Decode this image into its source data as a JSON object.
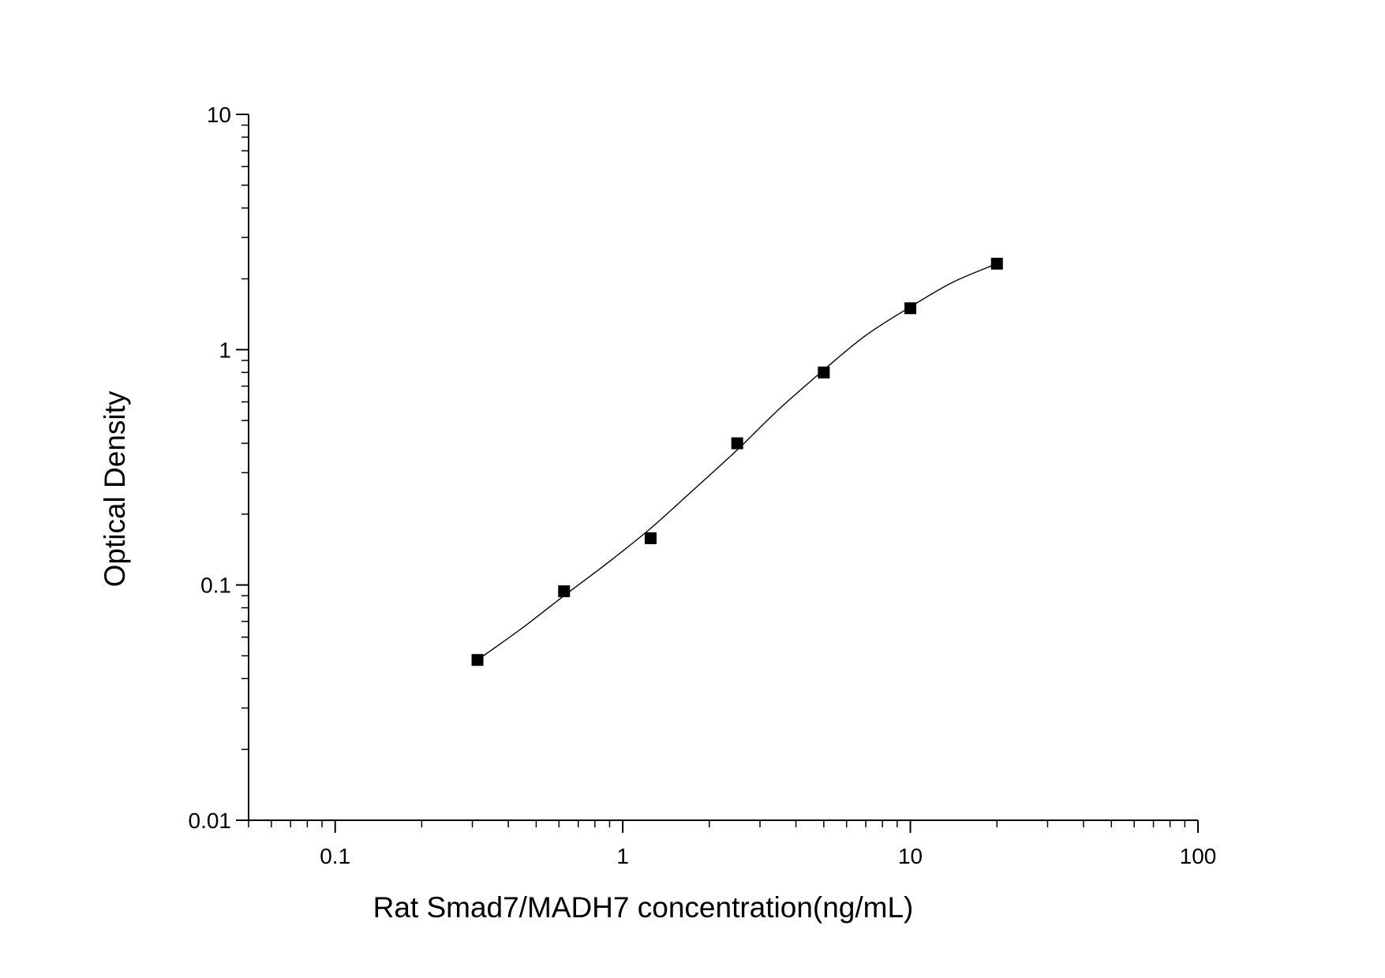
{
  "chart_data": {
    "type": "scatter",
    "xlabel": "Rat Smad7/MADH7 concentration(ng/mL)",
    "ylabel": "Optical Density",
    "x_scale": "log",
    "y_scale": "log",
    "xlim": [
      0.05,
      100
    ],
    "ylim": [
      0.01,
      10
    ],
    "x_ticks": [
      {
        "value": 0.1,
        "label": "0.1"
      },
      {
        "value": 1,
        "label": "1"
      },
      {
        "value": 10,
        "label": "10"
      },
      {
        "value": 100,
        "label": "100"
      }
    ],
    "y_ticks": [
      {
        "value": 0.01,
        "label": "0.01"
      },
      {
        "value": 0.1,
        "label": "0.1"
      },
      {
        "value": 1,
        "label": "1"
      },
      {
        "value": 10,
        "label": "10"
      }
    ],
    "grid": false,
    "series": [
      {
        "marker": "square",
        "color": "#000000",
        "points": [
          {
            "x": 0.3125,
            "y": 0.048
          },
          {
            "x": 0.625,
            "y": 0.094
          },
          {
            "x": 1.25,
            "y": 0.158
          },
          {
            "x": 2.5,
            "y": 0.4
          },
          {
            "x": 5,
            "y": 0.8
          },
          {
            "x": 10,
            "y": 1.5
          },
          {
            "x": 20,
            "y": 2.32
          }
        ]
      }
    ],
    "fit_curve": {
      "color": "#000000",
      "points": [
        {
          "x": 0.3125,
          "y": 0.048
        },
        {
          "x": 0.45,
          "y": 0.066
        },
        {
          "x": 0.625,
          "y": 0.09
        },
        {
          "x": 0.9,
          "y": 0.126
        },
        {
          "x": 1.25,
          "y": 0.174
        },
        {
          "x": 1.8,
          "y": 0.26
        },
        {
          "x": 2.5,
          "y": 0.375
        },
        {
          "x": 3.5,
          "y": 0.56
        },
        {
          "x": 5,
          "y": 0.82
        },
        {
          "x": 7,
          "y": 1.15
        },
        {
          "x": 10,
          "y": 1.52
        },
        {
          "x": 14,
          "y": 1.93
        },
        {
          "x": 20,
          "y": 2.32
        }
      ]
    }
  }
}
